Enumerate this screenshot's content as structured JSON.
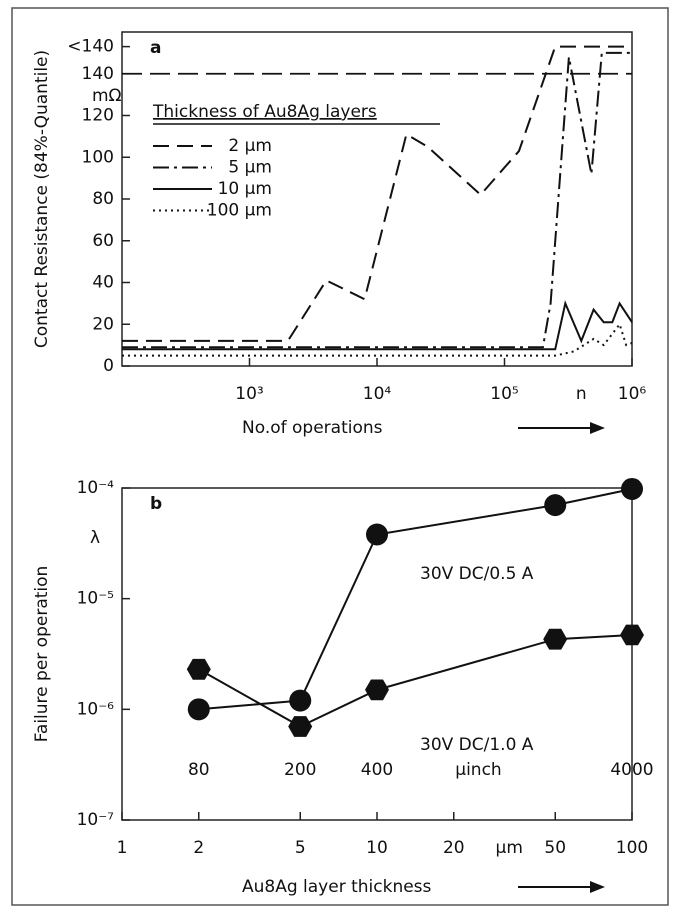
{
  "chart_data": [
    {
      "type": "line",
      "panel_label": "a",
      "x_label": "No.of operations",
      "y_label": "Contact Resistance (84%-Quantile)",
      "y_unit": "mΩ",
      "x_marker": "n",
      "legend_title": "Thickness of Au8Ag layers",
      "log_x": true,
      "xlim": [
        100,
        1000000
      ],
      "xticks": [
        {
          "value": 1000,
          "label": "10³"
        },
        {
          "value": 10000,
          "label": "10⁴"
        },
        {
          "value": 100000,
          "label": "10⁵"
        },
        {
          "value": 1000000,
          "label": "10⁶"
        }
      ],
      "ylim": [
        0,
        160
      ],
      "yticks": [
        0,
        20,
        40,
        60,
        80,
        100,
        120,
        140,
        {
          "value": 153,
          "label": "<140"
        }
      ],
      "reference_line": 140,
      "series": [
        {
          "name": "2 µm",
          "dash": "dashed",
          "x": [
            100,
            2000,
            4000,
            8000,
            17000,
            25000,
            65000,
            130000,
            250000,
            1000000
          ],
          "values": [
            12,
            12,
            41,
            32,
            111,
            105,
            82,
            103,
            153,
            153
          ]
        },
        {
          "name": "5 µm",
          "dash": "dashdot",
          "x": [
            100,
            200000,
            230000,
            320000,
            480000,
            580000,
            1000000
          ],
          "values": [
            9,
            9,
            30,
            148,
            92,
            150,
            150
          ]
        },
        {
          "name": "10 µm",
          "dash": "solid",
          "x": [
            100,
            250000,
            300000,
            400000,
            500000,
            600000,
            700000,
            800000,
            1000000
          ],
          "values": [
            8,
            8,
            30,
            12,
            27,
            21,
            21,
            30,
            21
          ]
        },
        {
          "name": "100 µm",
          "dash": "dotted",
          "x": [
            100,
            250000,
            350000,
            500000,
            600000,
            800000,
            900000,
            1000000
          ],
          "values": [
            5,
            5,
            7,
            13,
            10,
            20,
            10,
            11
          ]
        }
      ]
    },
    {
      "type": "line",
      "panel_label": "b",
      "x_label": "Au8Ag layer thickness",
      "y_label": "Failure per operation",
      "y_symbol": "λ",
      "x_unit": "µm",
      "top_unit": "µinch",
      "log_x": true,
      "log_y": true,
      "xlim": [
        1,
        100
      ],
      "xticks": [
        1,
        2,
        5,
        10,
        20,
        50,
        100
      ],
      "ylim": [
        1e-07,
        0.0001
      ],
      "yticks": [
        {
          "value": 0.0001,
          "label": "10⁻⁴"
        },
        {
          "value": 1e-05,
          "label": "10⁻⁵"
        },
        {
          "value": 1e-06,
          "label": "10⁻⁶"
        },
        {
          "value": 1e-07,
          "label": "10⁻⁷"
        }
      ],
      "top_ticks": [
        {
          "value": 2,
          "label": "80"
        },
        {
          "value": 5,
          "label": "200"
        },
        {
          "value": 10,
          "label": "400"
        },
        {
          "value": 100,
          "label": "4000"
        }
      ],
      "series": [
        {
          "name": "30V DC/0.5 A",
          "marker": "circle",
          "x": [
            2,
            5,
            10,
            50,
            100
          ],
          "values": [
            1e-06,
            1.2e-06,
            3.8e-05,
            7e-05,
            9.8e-05
          ]
        },
        {
          "name": "30V DC/1.0 A",
          "marker": "hexagon",
          "x": [
            2,
            5,
            10,
            50,
            100
          ],
          "values": [
            2.3e-06,
            7e-07,
            1.5e-06,
            4.3e-06,
            4.7e-06
          ]
        }
      ]
    }
  ]
}
